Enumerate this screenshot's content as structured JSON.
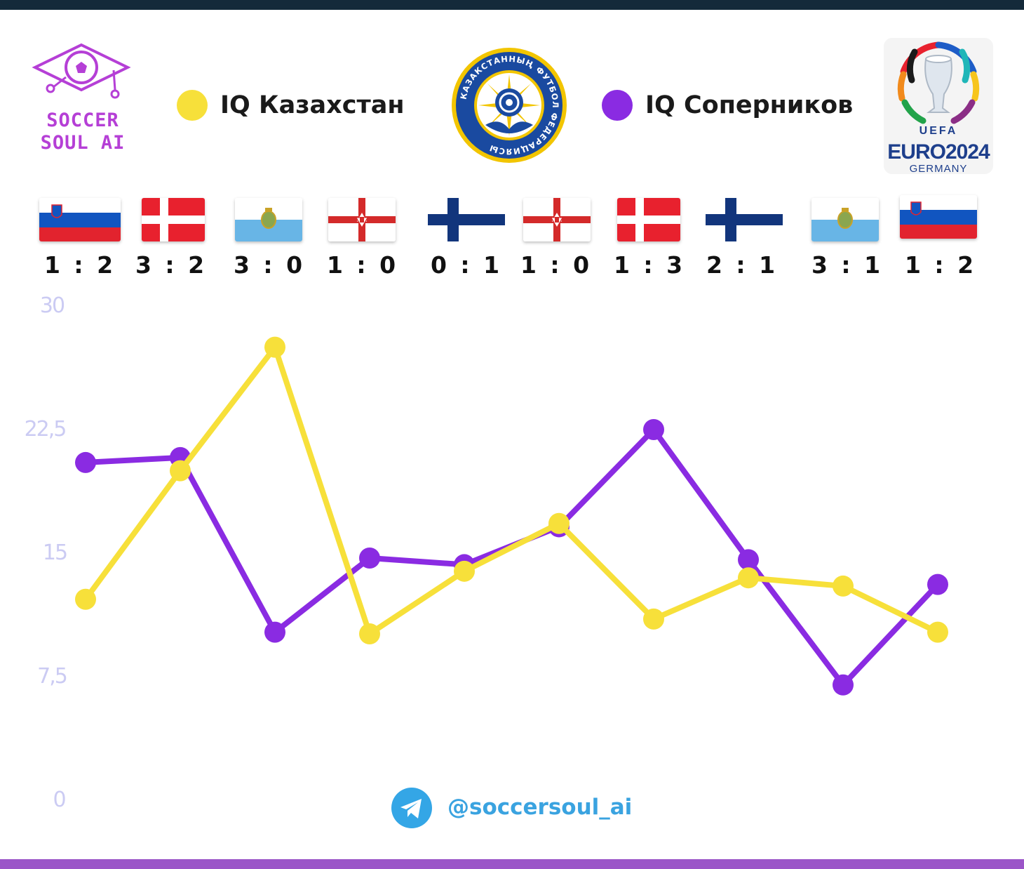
{
  "brand": {
    "line1": "SOCCER",
    "line2": "SOUL AI"
  },
  "legend": [
    {
      "label": "IQ Казахстан",
      "color": "#f7e03a"
    },
    {
      "label": "IQ Соперников",
      "color": "#8a2be2"
    }
  ],
  "federation_emblem": {
    "text": "КАЗАКСТАННЫҢ ФУТБОЛ ФЕДЕРАЦИЯСЫ",
    "icon": "kazakhstan-football-federation-emblem"
  },
  "tournament_logo": {
    "line1": "UEFA",
    "line2": "EURO2024",
    "line3": "GERMANY",
    "icon": "euro-2024-trophy-logo"
  },
  "matches": [
    {
      "flag": "slovenia",
      "score": "1 : 2"
    },
    {
      "flag": "denmark",
      "score": "3 : 2"
    },
    {
      "flag": "san-marino",
      "score": "3 : 0"
    },
    {
      "flag": "northern-ireland",
      "score": "1 : 0"
    },
    {
      "flag": "finland",
      "score": "0 : 1"
    },
    {
      "flag": "northern-ireland",
      "score": "1 : 0"
    },
    {
      "flag": "denmark",
      "score": "1 : 3"
    },
    {
      "flag": "finland",
      "score": "2 : 1"
    },
    {
      "flag": "san-marino",
      "score": "3 : 1"
    },
    {
      "flag": "slovenia",
      "score": "1 : 2"
    }
  ],
  "chart_data": {
    "type": "line",
    "x": [
      1,
      2,
      3,
      4,
      5,
      6,
      7,
      8,
      9,
      10
    ],
    "ylim": [
      0,
      30
    ],
    "yticks": [
      "0",
      "7,5",
      "15",
      "22,5",
      "30"
    ],
    "grid": false,
    "series": [
      {
        "name": "IQ Казахстан",
        "color": "#f7e03a",
        "values": [
          12.2,
          20.0,
          27.5,
          10.1,
          13.9,
          16.8,
          11.0,
          13.5,
          13.0,
          10.2
        ]
      },
      {
        "name": "IQ Соперников",
        "color": "#8a2be2",
        "values": [
          20.5,
          20.8,
          10.2,
          14.7,
          14.3,
          16.6,
          22.5,
          14.6,
          7.0,
          13.1
        ]
      }
    ]
  },
  "footer": {
    "handle": "@soccersoul_ai",
    "icon": "telegram-icon"
  }
}
